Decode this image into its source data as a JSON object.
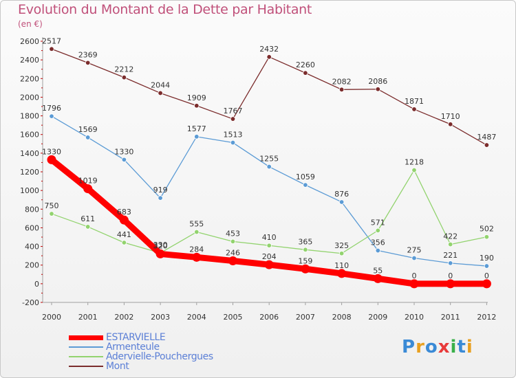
{
  "title": "Evolution du Montant de la Dette par Habitant",
  "unit": "(en €)",
  "brand": {
    "letters": [
      "P",
      "r",
      "o",
      "x",
      "i",
      "t",
      "i"
    ],
    "colors": [
      "#3a8ad6",
      "#e8a020",
      "#3a8ad6",
      "#e83a3a",
      "#3ab04a",
      "#3a8ad6",
      "#e8a020"
    ]
  },
  "chart_data": {
    "type": "line",
    "x": [
      "2000",
      "2001",
      "2002",
      "2003",
      "2004",
      "2005",
      "2006",
      "2007",
      "2008",
      "2009",
      "2010",
      "2011",
      "2012"
    ],
    "ylim": [
      -200,
      2600
    ],
    "yticks": [
      -200,
      0,
      200,
      400,
      600,
      800,
      1000,
      1200,
      1400,
      1600,
      1800,
      2000,
      2200,
      2400,
      2600
    ],
    "grid": false,
    "legend_position": "bottom-left",
    "series": [
      {
        "name": "ESTARVIELLE",
        "color": "#ff0000",
        "values": [
          1330,
          1019,
          683,
          320,
          284,
          246,
          204,
          159,
          110,
          55,
          0,
          0,
          0
        ]
      },
      {
        "name": "Armenteule",
        "color": "#5b9bd5",
        "values": [
          1796,
          1569,
          1330,
          919,
          1577,
          1513,
          1255,
          1059,
          876,
          356,
          275,
          221,
          190
        ]
      },
      {
        "name": "Adervielle-Pouchergues",
        "color": "#92d36e",
        "values": [
          750,
          611,
          441,
          330,
          555,
          453,
          410,
          365,
          325,
          571,
          1218,
          422,
          502
        ]
      },
      {
        "name": "Mont",
        "color": "#7b2c2c",
        "values": [
          2517,
          2369,
          2212,
          2044,
          1909,
          1767,
          2432,
          2260,
          2082,
          2086,
          1871,
          1710,
          1487
        ]
      }
    ]
  }
}
